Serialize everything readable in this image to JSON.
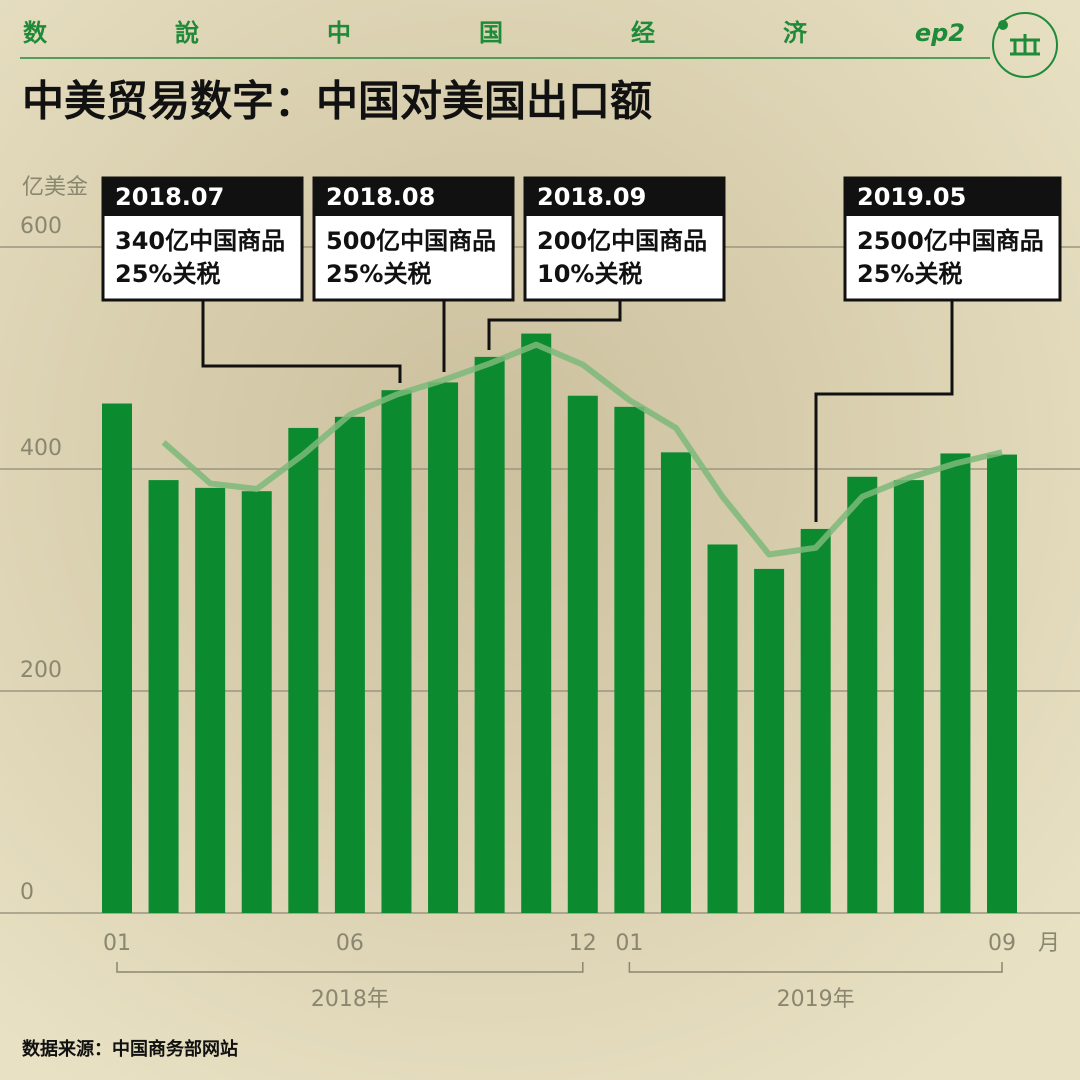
{
  "header": {
    "words": [
      "数",
      "說",
      "中",
      "国",
      "经",
      "济"
    ],
    "episode": "ep2"
  },
  "chart_data": {
    "type": "bar",
    "title": "中美贸易数字：中国对美国出口额",
    "y_label": "亿美金",
    "x_unit": "月",
    "groups": [
      "2018年",
      "2019年"
    ],
    "source": "数据来源：中国商务部网站",
    "categories": [
      "01",
      null,
      null,
      null,
      null,
      "06",
      null,
      null,
      null,
      null,
      "12",
      "01",
      null,
      null,
      null,
      null,
      null,
      null,
      null,
      "09"
    ],
    "series": [
      {
        "name": "出口额",
        "color": "#0b8a2f",
        "values": [
          459,
          390,
          383,
          380,
          437,
          447,
          471,
          478,
          501,
          522,
          466,
          456,
          415,
          332,
          310,
          346,
          393,
          390,
          414,
          413
        ]
      },
      {
        "name": "趋势",
        "color": "#7db87a",
        "values": [
          null,
          424,
          387,
          382,
          413,
          449,
          467,
          480,
          495,
          512,
          494,
          462,
          437,
          375,
          323,
          329,
          375,
          392,
          405,
          415
        ]
      }
    ],
    "annotations": [
      {
        "date": "2018.07",
        "lines": [
          "340亿中国商品",
          "25%关税"
        ]
      },
      {
        "date": "2018.08",
        "lines": [
          "500亿中国商品",
          "25%关税"
        ]
      },
      {
        "date": "2018.09",
        "lines": [
          "200亿中国商品",
          "10%关税"
        ]
      },
      {
        "date": "2019.05",
        "lines": [
          "2500亿中国商品",
          "25%关税"
        ]
      }
    ],
    "ylim": [
      0,
      600
    ],
    "yticks": [
      0,
      200,
      400,
      600
    ],
    "grid": true
  }
}
